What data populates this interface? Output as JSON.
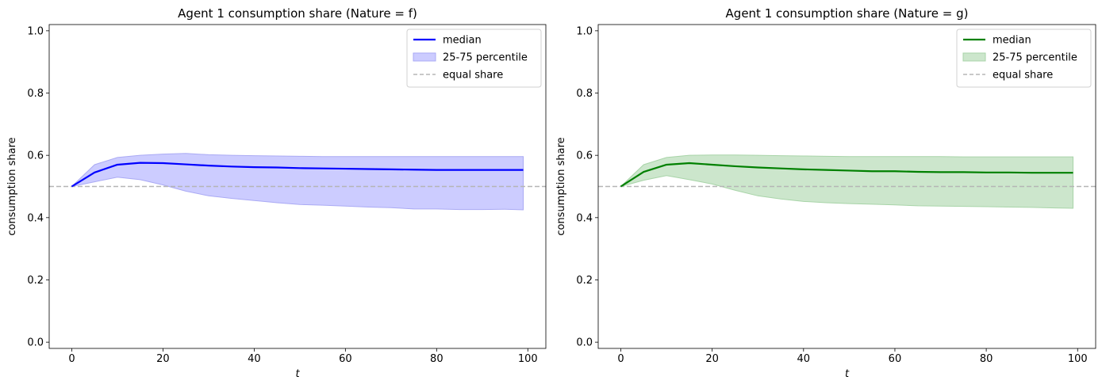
{
  "chart_data": [
    {
      "type": "line",
      "title": "Agent 1 consumption share (Nature = f)",
      "xlabel": "t",
      "ylabel": "consumption share",
      "xlim": [
        -4.95,
        103.95
      ],
      "ylim": [
        -0.02,
        1.02
      ],
      "xticks": [
        0,
        20,
        40,
        60,
        80,
        100
      ],
      "xtick_labels": [
        "0",
        "20",
        "40",
        "60",
        "80",
        "100"
      ],
      "yticks": [
        0.0,
        0.2,
        0.4,
        0.6,
        0.8,
        1.0
      ],
      "ytick_labels": [
        "0.0",
        "0.2",
        "0.4",
        "0.6",
        "0.8",
        "1.0"
      ],
      "grid": false,
      "legend_position": "top-right",
      "legend": [
        "median",
        "25-75 percentile",
        "equal share"
      ],
      "colors": {
        "line": "#0000ff",
        "band_fill": "#ccccff",
        "band_edge": "#aaaaf4",
        "reference": "#b5b5b5"
      },
      "x": [
        0,
        5,
        10,
        15,
        20,
        25,
        30,
        35,
        40,
        45,
        50,
        55,
        60,
        65,
        70,
        75,
        80,
        85,
        90,
        95,
        99
      ],
      "series": [
        {
          "name": "median",
          "values": [
            0.5,
            0.545,
            0.57,
            0.576,
            0.575,
            0.571,
            0.567,
            0.564,
            0.562,
            0.561,
            0.559,
            0.558,
            0.557,
            0.556,
            0.555,
            0.554,
            0.553,
            0.553,
            0.553,
            0.553,
            0.553
          ]
        },
        {
          "name": "25-75 percentile",
          "lower": [
            0.5,
            0.515,
            0.53,
            0.522,
            0.505,
            0.485,
            0.47,
            0.462,
            0.455,
            0.448,
            0.442,
            0.44,
            0.437,
            0.434,
            0.432,
            0.428,
            0.428,
            0.426,
            0.426,
            0.427,
            0.425
          ],
          "upper": [
            0.5,
            0.57,
            0.593,
            0.6,
            0.604,
            0.606,
            0.602,
            0.6,
            0.599,
            0.598,
            0.597,
            0.596,
            0.596,
            0.596,
            0.596,
            0.596,
            0.596,
            0.596,
            0.596,
            0.596,
            0.596
          ]
        },
        {
          "name": "equal share",
          "constant": 0.5
        }
      ]
    },
    {
      "type": "line",
      "title": "Agent 1 consumption share (Nature = g)",
      "xlabel": "t",
      "ylabel": "consumption share",
      "xlim": [
        -4.95,
        103.95
      ],
      "ylim": [
        -0.02,
        1.02
      ],
      "xticks": [
        0,
        20,
        40,
        60,
        80,
        100
      ],
      "xtick_labels": [
        "0",
        "20",
        "40",
        "60",
        "80",
        "100"
      ],
      "yticks": [
        0.0,
        0.2,
        0.4,
        0.6,
        0.8,
        1.0
      ],
      "ytick_labels": [
        "0.0",
        "0.2",
        "0.4",
        "0.6",
        "0.8",
        "1.0"
      ],
      "grid": false,
      "legend_position": "top-right",
      "legend": [
        "median",
        "25-75 percentile",
        "equal share"
      ],
      "colors": {
        "line": "#008000",
        "band_fill": "#cce6cc",
        "band_edge": "#a8d4a8",
        "reference": "#b5b5b5"
      },
      "x": [
        0,
        5,
        10,
        15,
        20,
        25,
        30,
        35,
        40,
        45,
        50,
        55,
        60,
        65,
        70,
        75,
        80,
        85,
        90,
        95,
        99
      ],
      "series": [
        {
          "name": "median",
          "values": [
            0.5,
            0.547,
            0.57,
            0.575,
            0.57,
            0.565,
            0.561,
            0.558,
            0.555,
            0.553,
            0.551,
            0.549,
            0.549,
            0.547,
            0.546,
            0.546,
            0.545,
            0.545,
            0.544,
            0.544,
            0.544
          ]
        },
        {
          "name": "25-75 percentile",
          "lower": [
            0.5,
            0.52,
            0.535,
            0.522,
            0.508,
            0.488,
            0.47,
            0.46,
            0.452,
            0.448,
            0.445,
            0.443,
            0.441,
            0.438,
            0.437,
            0.436,
            0.435,
            0.434,
            0.433,
            0.431,
            0.43
          ],
          "upper": [
            0.5,
            0.57,
            0.593,
            0.6,
            0.601,
            0.601,
            0.6,
            0.599,
            0.598,
            0.597,
            0.596,
            0.596,
            0.596,
            0.596,
            0.596,
            0.595,
            0.595,
            0.595,
            0.595,
            0.595,
            0.595
          ]
        },
        {
          "name": "equal share",
          "constant": 0.5
        }
      ]
    }
  ]
}
